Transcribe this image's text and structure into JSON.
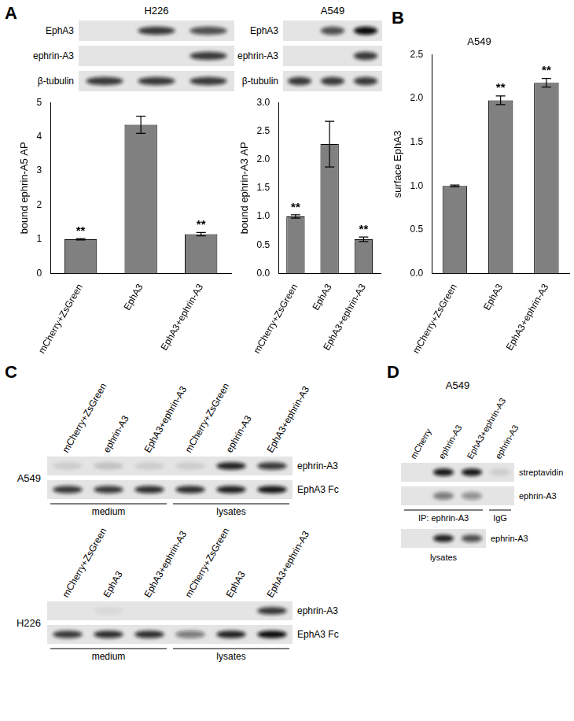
{
  "panel_labels": [
    "A",
    "B",
    "C",
    "D"
  ],
  "chart_data": [
    {
      "type": "bar",
      "y_label": "bound ephrin-A5 AP",
      "categories": [
        "mCherry+ZsGreen",
        "EphA3",
        "EphA3+ephrin-A3"
      ],
      "values": [
        1.0,
        4.35,
        1.15
      ],
      "errors": [
        0.02,
        0.25,
        0.05
      ],
      "significance": [
        "**",
        null,
        "**"
      ],
      "color": "#808080",
      "ylim": [
        0,
        5
      ],
      "yticks": [
        0,
        1,
        2,
        3,
        4,
        5
      ],
      "grid": false
    },
    {
      "type": "bar",
      "y_label": "bound ephrin-A3 AP",
      "categories": [
        "mCherry+ZsGreen",
        "EphA3",
        "EphA3+ephrin-A3"
      ],
      "values": [
        1.0,
        2.27,
        0.6
      ],
      "errors": [
        0.03,
        0.4,
        0.04
      ],
      "significance": [
        "**",
        null,
        "**"
      ],
      "color": "#808080",
      "ylim": [
        0,
        3
      ],
      "yticks": [
        {
          "value": 0,
          "label": "0.0"
        },
        0.5,
        {
          "value": 1,
          "label": "1.0"
        },
        1.5,
        {
          "value": 2,
          "label": "2.0"
        },
        2.5,
        {
          "value": 3,
          "label": "3.0"
        }
      ],
      "grid": false
    },
    {
      "type": "bar",
      "title": "A549",
      "y_label": "surface EphA3",
      "categories": [
        "mCherry+ZsGreen",
        "EphA3",
        "EphA3+ephrin-A3"
      ],
      "values": [
        1.0,
        1.98,
        2.18
      ],
      "errors": [
        0.01,
        0.05,
        0.05
      ],
      "significance": [
        null,
        "**",
        "**"
      ],
      "color": "#808080",
      "ylim": [
        0,
        2.5
      ],
      "yticks": [
        {
          "value": 0,
          "label": "0.0"
        },
        0.5,
        {
          "value": 1,
          "label": "1.0"
        },
        1.5,
        {
          "value": 2,
          "label": "2.0"
        },
        2.5
      ],
      "grid": false
    }
  ],
  "blots": [
    {
      "panel": "A",
      "title": "H226",
      "rows": [
        {
          "label": "EphA3",
          "bands": [
            0,
            0.8,
            0.7
          ]
        },
        {
          "label": "ephrin-A3",
          "bands": [
            0,
            0,
            0.8
          ]
        },
        {
          "label": "β-tubulin",
          "bands": [
            0.8,
            0.8,
            0.8
          ]
        }
      ]
    },
    {
      "panel": "A",
      "title": "A549",
      "rows": [
        {
          "label": "EphA3",
          "bands": [
            0,
            0.7,
            1
          ]
        },
        {
          "label": "ephrin-A3",
          "bands": [
            0,
            0,
            0.8
          ]
        },
        {
          "label": "β-tubulin",
          "bands": [
            0.8,
            0.8,
            0.8
          ]
        }
      ]
    },
    {
      "panel": "C",
      "title": "A549",
      "lanes": [
        "mCherry+ZsGreen",
        "ephrin-A3",
        "EphA3+ephrin-A3",
        "mCherry+ZsGreen",
        "ephrin-A3",
        "EphA3+ephrin-A3"
      ],
      "rows": [
        {
          "label": "ephrin-A3",
          "bands": [
            0.1,
            0.15,
            0.1,
            0.1,
            0.9,
            0.8
          ]
        },
        {
          "label": "EphA3 Fc",
          "bands": [
            0.8,
            0.8,
            0.85,
            0.85,
            0.9,
            0.95
          ]
        }
      ],
      "groups": [
        {
          "label": "medium",
          "span": 3
        },
        {
          "label": "lysates",
          "span": 3
        }
      ]
    },
    {
      "panel": "C",
      "title": "H226",
      "lanes": [
        "mCherry+ZsGreen",
        "EphA3",
        "EphA3+ephrin-A3",
        "mCherry+ZsGreen",
        "EphA3",
        "EphA3+ephrin-A3"
      ],
      "rows": [
        {
          "label": "ephrin-A3",
          "bands": [
            0,
            0.05,
            0,
            0,
            0,
            0.8
          ]
        },
        {
          "label": "EphA3 Fc",
          "bands": [
            0.8,
            0.85,
            0.85,
            0.5,
            0.9,
            1
          ]
        }
      ],
      "groups": [
        {
          "label": "medium",
          "span": 3
        },
        {
          "label": "lysates",
          "span": 3
        }
      ]
    },
    {
      "panel": "D",
      "title": "A549",
      "lanes": [
        "mCherry",
        "ephrin-A3",
        "EphA3+ephrin-A3",
        "ephrin-A3"
      ],
      "rows": [
        {
          "label": "streptavidin",
          "bands": [
            0,
            0.95,
            0.95,
            0.1
          ]
        },
        {
          "label": "ephrin-A3",
          "bands": [
            0,
            0.5,
            0.4,
            0
          ]
        }
      ],
      "groups": [
        {
          "label": "IP: ephrin-A3",
          "span": 3
        },
        {
          "label": "IgG",
          "span": 1
        }
      ],
      "lysate_rows": [
        {
          "label": "ephrin-A3",
          "bands": [
            0,
            0.9,
            0.7
          ]
        }
      ],
      "lysate_label": "lysates"
    }
  ]
}
